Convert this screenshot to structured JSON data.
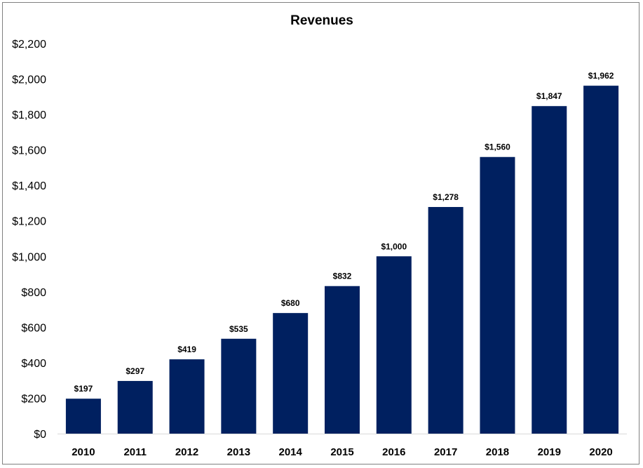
{
  "chart_data": {
    "type": "bar",
    "title": "Revenues",
    "xlabel": "",
    "ylabel": "",
    "categories": [
      "2010",
      "2011",
      "2012",
      "2013",
      "2014",
      "2015",
      "2016",
      "2017",
      "2018",
      "2019",
      "2020"
    ],
    "values": [
      197,
      297,
      419,
      535,
      680,
      832,
      1000,
      1278,
      1560,
      1847,
      1962
    ],
    "data_labels": [
      "$197",
      "$297",
      "$419",
      "$535",
      "$680",
      "$832",
      "$1,000",
      "$1,278",
      "$1,560",
      "$1,847",
      "$1,962"
    ],
    "ylim": [
      0,
      2200
    ],
    "y_ticks": [
      0,
      200,
      400,
      600,
      800,
      1000,
      1200,
      1400,
      1600,
      1800,
      2000,
      2200
    ],
    "y_tick_labels": [
      "$0",
      "$200",
      "$400",
      "$600",
      "$800",
      "$1,000",
      "$1,200",
      "$1,400",
      "$1,600",
      "$1,800",
      "$2,000",
      "$2,200"
    ],
    "grid": false,
    "legend": "none",
    "bar_color": "#002060",
    "axis_color": "#d9d9d9"
  }
}
